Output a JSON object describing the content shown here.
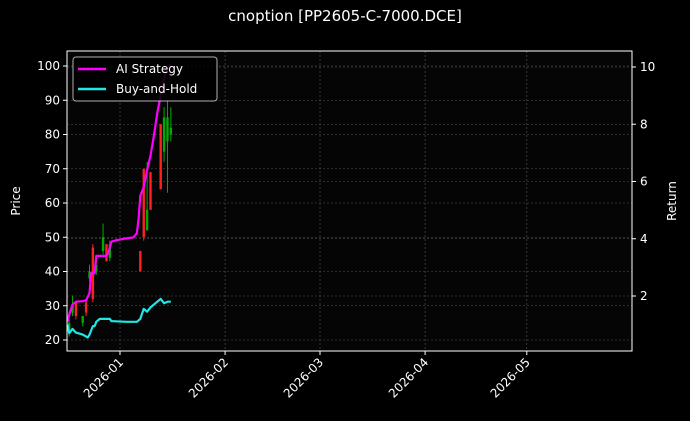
{
  "title": "cnoption [PP2605-C-7000.DCE]",
  "colors": {
    "background": "#000000",
    "up": "#00aa00",
    "down": "#ff2020",
    "ai": "#ff00ff",
    "bh": "#22e5e5",
    "grid": "#555555",
    "axis": "#ffffff"
  },
  "chart_data": {
    "type": "line",
    "title": "cnoption [PP2605-C-7000.DCE]",
    "xlabel": "",
    "ylabel": "Price",
    "y2label": "Return",
    "x_ticks": [
      "2026-01",
      "2026-02",
      "2026-03",
      "2026-04",
      "2026-05"
    ],
    "y_ticks": [
      20,
      30,
      40,
      50,
      60,
      70,
      80,
      90,
      100
    ],
    "y2_ticks": [
      2,
      4,
      6,
      8,
      10
    ],
    "ylim": [
      16.5,
      104.5
    ],
    "y2lim": [
      0.2,
      10.5
    ],
    "xlim_days": [
      -15.5,
      151
    ],
    "grid": true,
    "legend": {
      "position": "upper left",
      "entries": [
        "AI Strategy",
        "Buy-and-Hold"
      ]
    },
    "candles": [
      {
        "d": -15,
        "o": 23,
        "c": 25,
        "h": 26,
        "l": 21
      },
      {
        "d": -14,
        "o": 28,
        "c": 30,
        "h": 33,
        "l": 27
      },
      {
        "d": -13,
        "o": 31,
        "c": 27,
        "h": 31,
        "l": 26
      },
      {
        "d": -11,
        "o": 25,
        "c": 27,
        "h": 27,
        "l": 24
      },
      {
        "d": -10,
        "o": 31,
        "c": 28,
        "h": 32,
        "l": 27
      },
      {
        "d": -9,
        "o": 38,
        "c": 40,
        "h": 42,
        "l": 37
      },
      {
        "d": -8,
        "o": 47,
        "c": 32,
        "h": 48,
        "l": 31
      },
      {
        "d": -7,
        "o": 40,
        "c": 42,
        "h": 43,
        "l": 39
      },
      {
        "d": -5,
        "o": 46,
        "c": 50,
        "h": 54,
        "l": 45
      },
      {
        "d": -4,
        "o": 48,
        "c": 43,
        "h": 48,
        "l": 43
      },
      {
        "d": -3,
        "o": 44,
        "c": 48,
        "h": 49,
        "l": 43
      },
      {
        "d": 6,
        "o": 46,
        "c": 40,
        "h": 46,
        "l": 40
      },
      {
        "d": 7,
        "o": 70,
        "c": 50,
        "h": 70,
        "l": 49
      },
      {
        "d": 8,
        "o": 52,
        "c": 58,
        "h": 72,
        "l": 52
      },
      {
        "d": 9,
        "o": 69,
        "c": 58,
        "h": 69,
        "l": 58
      },
      {
        "d": 12,
        "o": 83,
        "c": 64,
        "h": 83,
        "l": 64
      },
      {
        "d": 13,
        "o": 75,
        "c": 85,
        "h": 88,
        "l": 72
      },
      {
        "d": 14,
        "o": 78,
        "c": 85,
        "h": 90,
        "l": 63
      },
      {
        "d": 15,
        "o": 80,
        "c": 82,
        "h": 88,
        "l": 78
      }
    ],
    "series": [
      {
        "name": "AI Strategy",
        "axis": "right",
        "points": [
          [
            -15.5,
            1.1
          ],
          [
            -15,
            1.35
          ],
          [
            -14,
            1.7
          ],
          [
            -13,
            1.8
          ],
          [
            -11,
            1.82
          ],
          [
            -10,
            1.85
          ],
          [
            -9,
            2.1
          ],
          [
            -8.5,
            2.8
          ],
          [
            -7.5,
            2.8
          ],
          [
            -7,
            3.4
          ],
          [
            -4.5,
            3.4
          ],
          [
            -4,
            3.4
          ],
          [
            -3.5,
            3.5
          ],
          [
            -2.5,
            3.9
          ],
          [
            -1,
            3.95
          ],
          [
            1,
            4.0
          ],
          [
            4,
            4.05
          ],
          [
            5,
            4.2
          ],
          [
            5.5,
            4.7
          ],
          [
            6,
            5.5
          ],
          [
            7,
            5.8
          ],
          [
            8,
            6.4
          ],
          [
            9,
            6.9
          ],
          [
            10,
            7.6
          ],
          [
            11,
            8.4
          ],
          [
            12,
            9.0
          ],
          [
            13,
            9.6
          ],
          [
            14,
            10.0
          ],
          [
            15,
            10.1
          ]
        ]
      },
      {
        "name": "Buy-and-Hold",
        "axis": "right",
        "points": [
          [
            -15.5,
            1.0
          ],
          [
            -15,
            0.7
          ],
          [
            -14,
            0.85
          ],
          [
            -13,
            0.72
          ],
          [
            -11,
            0.65
          ],
          [
            -9.5,
            0.55
          ],
          [
            -9,
            0.65
          ],
          [
            -8,
            0.95
          ],
          [
            -7.5,
            0.95
          ],
          [
            -7,
            1.1
          ],
          [
            -6,
            1.2
          ],
          [
            -5,
            1.2
          ],
          [
            -3,
            1.2
          ],
          [
            -2.5,
            1.12
          ],
          [
            -2,
            1.12
          ],
          [
            2,
            1.1
          ],
          [
            5,
            1.1
          ],
          [
            6,
            1.2
          ],
          [
            7,
            1.55
          ],
          [
            8,
            1.45
          ],
          [
            9,
            1.6
          ],
          [
            11,
            1.8
          ],
          [
            12,
            1.9
          ],
          [
            13,
            1.75
          ],
          [
            14,
            1.8
          ],
          [
            15,
            1.8
          ]
        ]
      }
    ]
  }
}
